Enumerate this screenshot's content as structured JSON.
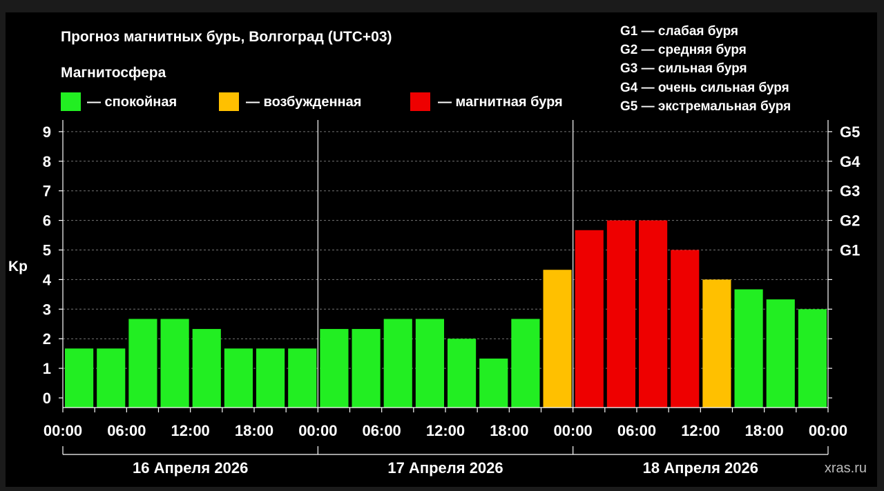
{
  "chart_data": {
    "type": "bar",
    "title": "Прогноз магнитных бурь, Волгоград (UTC+03)",
    "ylabel": "Kp",
    "ylim": [
      0,
      9
    ],
    "y_ticks": [
      "0",
      "1",
      "2",
      "3",
      "4",
      "5",
      "6",
      "7",
      "8",
      "9"
    ],
    "right_ticks": [
      {
        "kp": 5,
        "label": "G1"
      },
      {
        "kp": 6,
        "label": "G2"
      },
      {
        "kp": 7,
        "label": "G3"
      },
      {
        "kp": 8,
        "label": "G4"
      },
      {
        "kp": 9,
        "label": "G5"
      }
    ],
    "legend_title": "Магнитосфера",
    "legend": [
      {
        "color": "#22ee22",
        "label": "— спокойная"
      },
      {
        "color": "#ffc000",
        "label": "— возбужденная"
      },
      {
        "color": "#ee0000",
        "label": "— магнитная буря"
      }
    ],
    "storm_levels": [
      "G1 — слабая буря",
      "G2 — средняя буря",
      "G3 — сильная буря",
      "G4 — очень сильная буря",
      "G5 — экстремальная буря"
    ],
    "x_tick_labels": [
      "00:00",
      "06:00",
      "12:00",
      "18:00",
      "00:00",
      "06:00",
      "12:00",
      "18:00",
      "00:00",
      "06:00",
      "12:00",
      "18:00",
      "00:00"
    ],
    "days": [
      "16 Апреля 2026",
      "17 Апреля 2026",
      "18 Апреля 2026"
    ],
    "interval_hours": 3,
    "values": [
      1.67,
      1.67,
      2.67,
      2.67,
      2.33,
      1.67,
      1.67,
      1.67,
      2.33,
      2.33,
      2.67,
      2.67,
      2.0,
      1.33,
      2.67,
      4.33,
      5.67,
      6.0,
      6.0,
      5.0,
      4.0,
      3.67,
      3.33,
      3.0
    ],
    "bar_colors": [
      "#22ee22",
      "#22ee22",
      "#22ee22",
      "#22ee22",
      "#22ee22",
      "#22ee22",
      "#22ee22",
      "#22ee22",
      "#22ee22",
      "#22ee22",
      "#22ee22",
      "#22ee22",
      "#22ee22",
      "#22ee22",
      "#22ee22",
      "#ffc000",
      "#ee0000",
      "#ee0000",
      "#ee0000",
      "#ee0000",
      "#ffc000",
      "#22ee22",
      "#22ee22",
      "#22ee22"
    ],
    "grid": true
  },
  "watermark": "xras.ru"
}
